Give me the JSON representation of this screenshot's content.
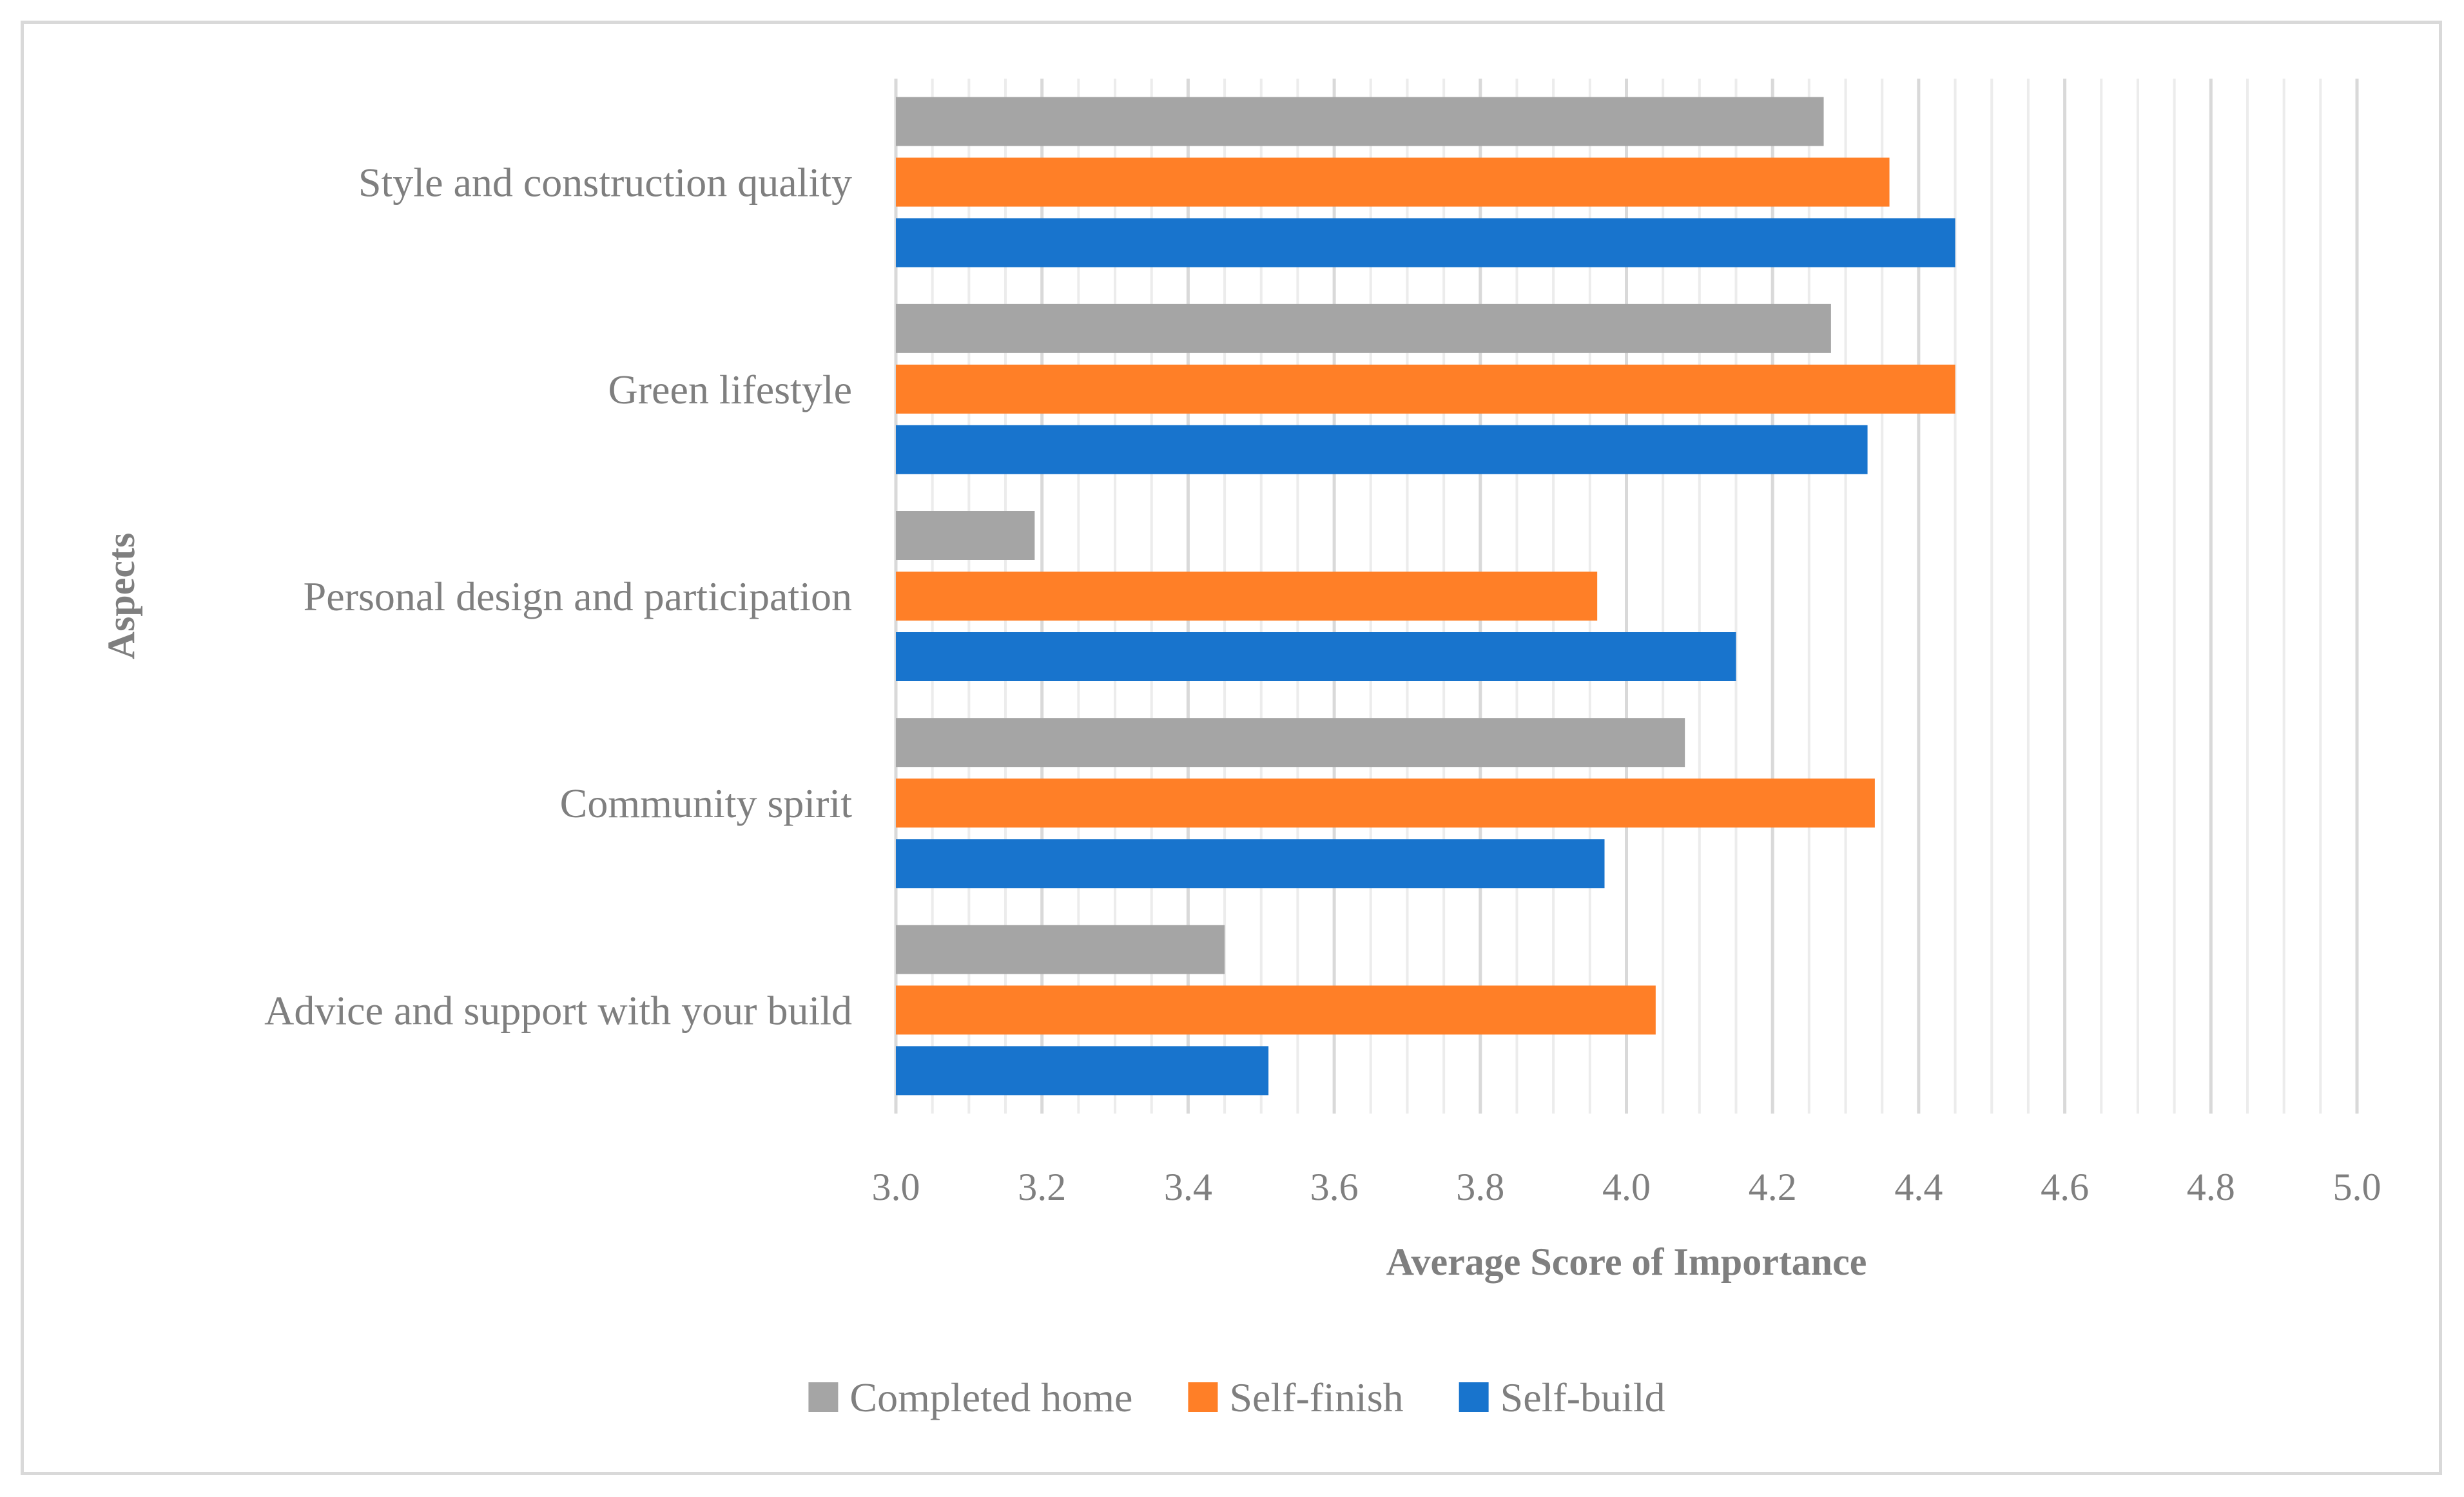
{
  "chart_data": {
    "type": "bar",
    "orientation": "horizontal",
    "categories": [
      "Style and construction quality",
      "Green lifestyle",
      "Personal design and participation",
      "Community spirit",
      "Advice and support with your build"
    ],
    "series": [
      {
        "name": "Completed home",
        "color": "#a5a5a5",
        "values": [
          4.27,
          4.28,
          3.19,
          4.08,
          3.45
        ]
      },
      {
        "name": "Self-finish",
        "color": "#ff7f27",
        "values": [
          4.36,
          4.45,
          3.96,
          4.34,
          4.04
        ]
      },
      {
        "name": "Self-build",
        "color": "#1874cd",
        "values": [
          4.45,
          4.33,
          4.15,
          3.97,
          3.51
        ]
      }
    ],
    "xlabel": "Average Score of Importance",
    "ylabel": "Aspects",
    "xlim": [
      3.0,
      5.0
    ],
    "major_ticks": [
      "3.0",
      "3.2",
      "3.4",
      "3.6",
      "3.8",
      "4.0",
      "4.2",
      "4.4",
      "4.6",
      "4.8",
      "5.0"
    ],
    "grid": true,
    "legend_position": "bottom"
  }
}
